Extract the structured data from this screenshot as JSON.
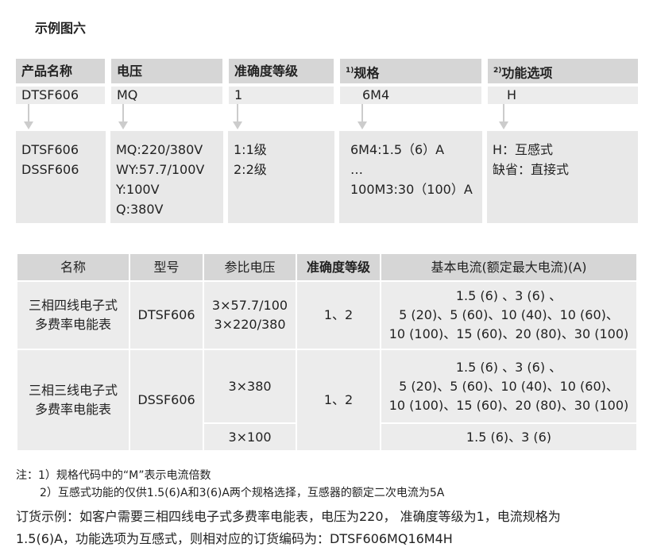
{
  "title": "示例图六",
  "code": [
    {
      "header": "产品名称",
      "value": "DTSF606",
      "details": [
        "DTSF606",
        "DSSF606"
      ]
    },
    {
      "header": "电压",
      "value": "MQ",
      "details": [
        "MQ:220/380V",
        "WY:57.7/100V",
        "Y:100V",
        "Q:380V"
      ]
    },
    {
      "header": "准确度等级",
      "value": "1",
      "details": [
        "1:1级",
        "2:2级"
      ]
    },
    {
      "sup": "1)",
      "header": "规格",
      "value": "6M4",
      "details": [
        "6M4:1.5（6）A",
        "…",
        "100M3:30（100）A"
      ]
    },
    {
      "sup": "2)",
      "header": "功能选项",
      "value": "H",
      "details": [
        "H：互感式",
        "缺省：直接式"
      ]
    }
  ],
  "table": {
    "headers": [
      "名称",
      "型号",
      "参比电压",
      "准确度等级",
      "基本电流(额定最大电流)(A)"
    ],
    "rows": [
      {
        "name": [
          "三相四线电子式",
          "多费率电能表"
        ],
        "model": "DTSF606",
        "voltage": [
          "3×57.7/100",
          "3×220/380"
        ],
        "accuracy": "1、2",
        "current": [
          "1.5 (6) 、3 (6) 、",
          "5 (20)、5 (60)、10 (40)、10 (60)、",
          "10 (100)、15 (60)、20 (80)、30 (100)"
        ]
      },
      {
        "name": [
          "三相三线电子式",
          "多费率电能表"
        ],
        "model": "DSSF606",
        "voltage": [
          "3×380"
        ],
        "accuracy": "1、2",
        "current": [
          "1.5 (6) 、3 (6) 、",
          "5 (20)、5 (60)、10 (40)、10 (60)、",
          "10 (100)、15 (60)、20 (80)、30 (100)"
        ],
        "voltage2": "3×100",
        "current2": "1.5 (6)、3 (6)"
      }
    ]
  },
  "notes": [
    "注：1）规格代码中的“M”表示电流倍数",
    "2）互感式功能的仅供1.5(6)A和3(6)A两个规格选择，互感器的额定二次电流为5A"
  ],
  "order": [
    "订货示例：如客户需要三相四线电子式多费率电能表，电压为220， 准确度等级为1，电流规格为",
    "1.5(6)A，功能选项为互感式，则相对应的订货编码为：DTSF606MQ16M4H"
  ]
}
